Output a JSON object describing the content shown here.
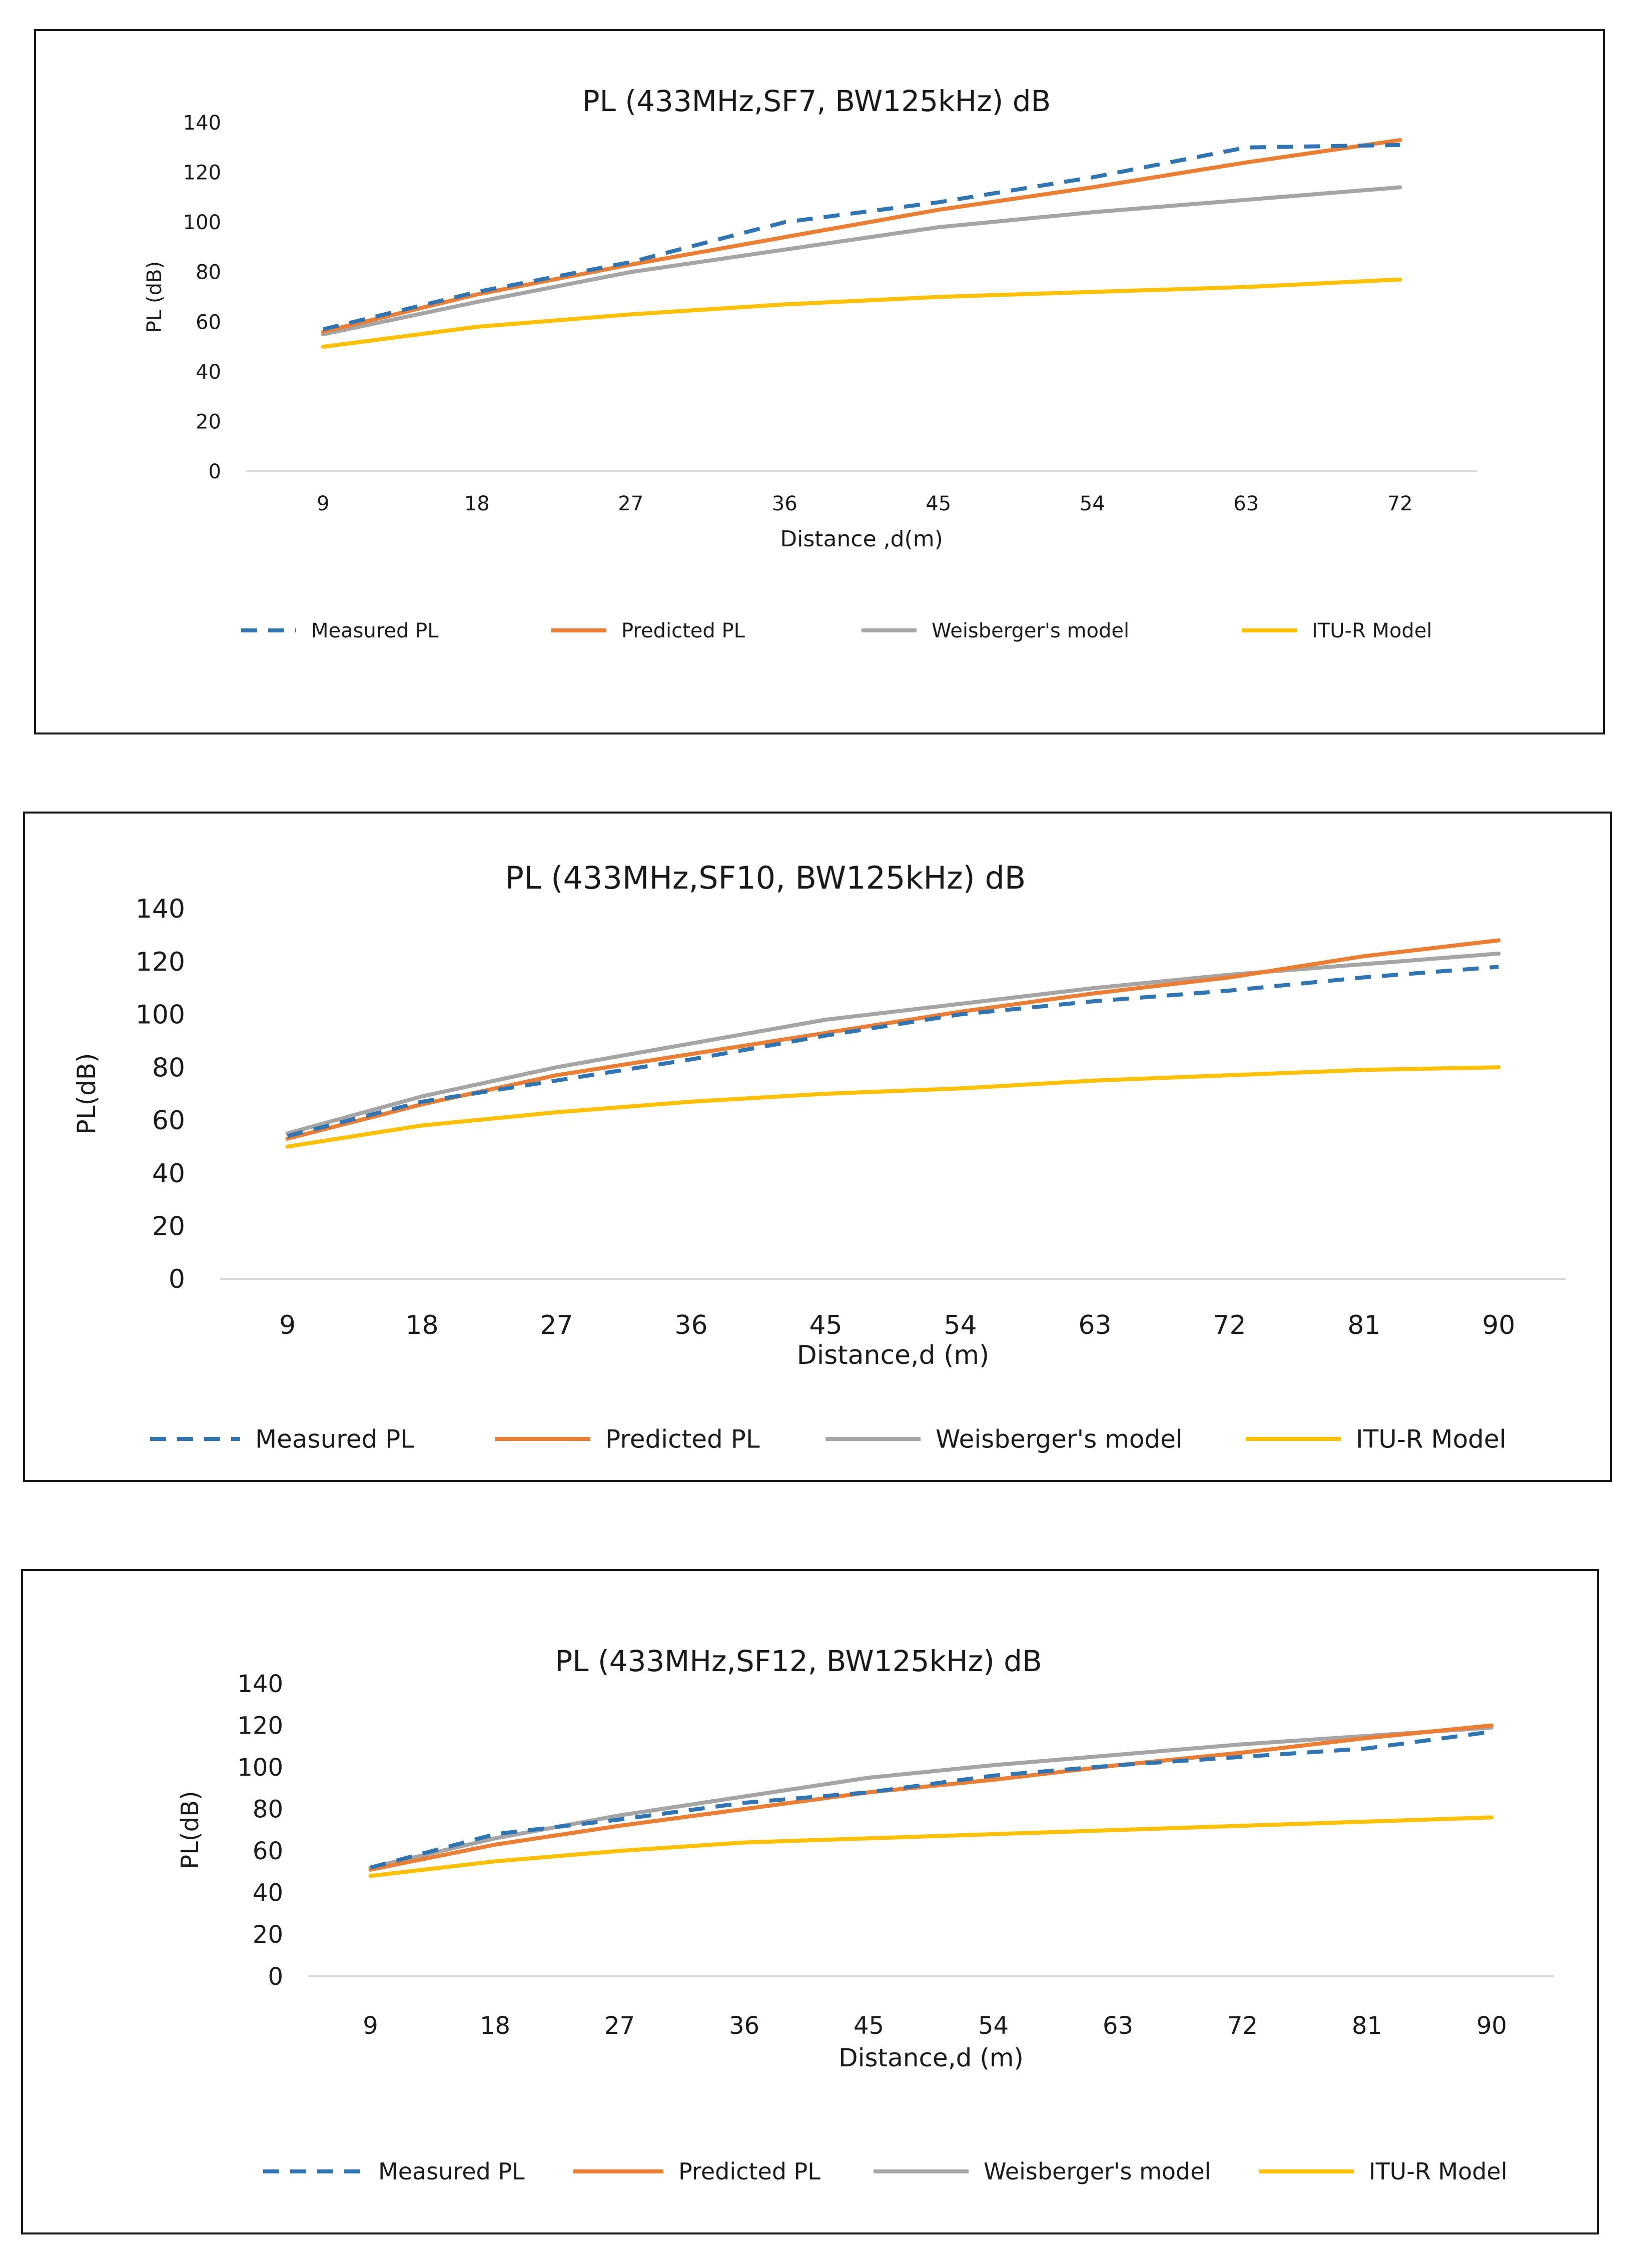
{
  "colors": {
    "measured": "#2E75B6",
    "predicted": "#ED7D31",
    "weisberger": "#A5A5A5",
    "itu": "#FFC000",
    "axis": "#d9d9d9",
    "text": "#1a1a1a"
  },
  "chart_data": [
    {
      "type": "line",
      "title": "PL (433MHz,SF7, BW125kHz) dB",
      "xlabel": "Distance ,d(m)",
      "ylabel": "PL (dB)",
      "ylim": [
        0,
        140
      ],
      "yticks": [
        "0",
        "20",
        "40",
        "60",
        "80",
        "100",
        "120",
        "140"
      ],
      "categories": [
        "9",
        "18",
        "27",
        "36",
        "45",
        "54",
        "63",
        "72"
      ],
      "legend_position": "bottom",
      "series": [
        {
          "name": "Measured PL",
          "style": "dashed",
          "color_key": "measured",
          "values": [
            57,
            72,
            84,
            100,
            108,
            118,
            130,
            131
          ]
        },
        {
          "name": "Predicted PL",
          "style": "solid",
          "color_key": "predicted",
          "values": [
            56,
            71,
            83,
            94,
            105,
            114,
            124,
            133
          ]
        },
        {
          "name": "Weisberger's model",
          "style": "solid",
          "color_key": "weisberger",
          "values": [
            55,
            68,
            80,
            89,
            98,
            104,
            109,
            114
          ]
        },
        {
          "name": "ITU-R Model",
          "style": "solid",
          "color_key": "itu",
          "values": [
            50,
            58,
            63,
            67,
            70,
            72,
            74,
            77
          ]
        }
      ]
    },
    {
      "type": "line",
      "title": "PL (433MHz,SF10, BW125kHz) dB",
      "xlabel": "Distance,d (m)",
      "ylabel": "PL(dB)",
      "ylim": [
        0,
        140
      ],
      "yticks": [
        "0",
        "20",
        "40",
        "60",
        "80",
        "100",
        "120",
        "140"
      ],
      "categories": [
        "9",
        "18",
        "27",
        "36",
        "45",
        "54",
        "63",
        "72",
        "81",
        "90"
      ],
      "legend_position": "bottom",
      "series": [
        {
          "name": "Measured PL",
          "style": "dashed",
          "color_key": "measured",
          "values": [
            54,
            67,
            75,
            83,
            92,
            100,
            105,
            109,
            114,
            118
          ]
        },
        {
          "name": "Predicted PL",
          "style": "solid",
          "color_key": "predicted",
          "values": [
            53,
            66,
            77,
            85,
            93,
            101,
            108,
            114,
            122,
            128
          ]
        },
        {
          "name": "Weisberger's model",
          "style": "solid",
          "color_key": "weisberger",
          "values": [
            55,
            69,
            80,
            89,
            98,
            104,
            110,
            115,
            119,
            123
          ]
        },
        {
          "name": "ITU-R Model",
          "style": "solid",
          "color_key": "itu",
          "values": [
            50,
            58,
            63,
            67,
            70,
            72,
            75,
            77,
            79,
            80
          ]
        }
      ]
    },
    {
      "type": "line",
      "title": "PL (433MHz,SF12, BW125kHz) dB",
      "xlabel": "Distance,d (m)",
      "ylabel": "PL(dB)",
      "ylim": [
        0,
        140
      ],
      "yticks": [
        "0",
        "20",
        "40",
        "60",
        "80",
        "100",
        "120",
        "140"
      ],
      "categories": [
        "9",
        "18",
        "27",
        "36",
        "45",
        "54",
        "63",
        "72",
        "81",
        "90"
      ],
      "legend_position": "bottom",
      "series": [
        {
          "name": "Measured PL",
          "style": "dashed",
          "color_key": "measured",
          "values": [
            52,
            68,
            75,
            83,
            88,
            96,
            101,
            105,
            109,
            117
          ]
        },
        {
          "name": "Predicted PL",
          "style": "solid",
          "color_key": "predicted",
          "values": [
            51,
            63,
            72,
            80,
            88,
            94,
            101,
            107,
            114,
            120
          ]
        },
        {
          "name": "Weisberger's model",
          "style": "solid",
          "color_key": "weisberger",
          "values": [
            52,
            66,
            77,
            86,
            95,
            101,
            106,
            111,
            115,
            119
          ]
        },
        {
          "name": "ITU-R Model",
          "style": "solid",
          "color_key": "itu",
          "values": [
            48,
            55,
            60,
            64,
            66,
            68,
            70,
            72,
            74,
            76
          ]
        }
      ]
    }
  ]
}
